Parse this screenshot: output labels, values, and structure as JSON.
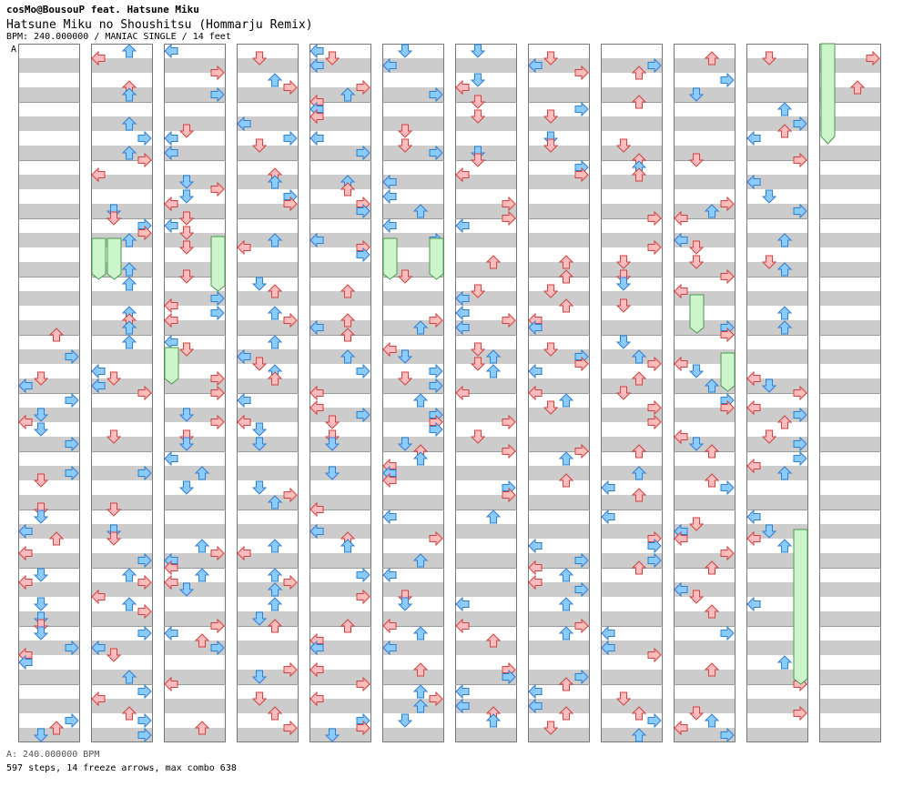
{
  "header": {
    "artist": "cosMo@BousouP feat. Hatsune Miku",
    "title": "Hatsune Miku no Shoushitsu (Hommarju Remix)",
    "meta": "BPM: 240.000000 / MANIAC SINGLE / 14 feet"
  },
  "chart": {
    "section_label": "A",
    "columns": 12,
    "lanes_per_column": 4,
    "colors": {
      "red_fill": "#ffbcbc",
      "red_stroke": "#d24040",
      "blue_fill": "#8ccbff",
      "blue_stroke": "#2f7fcf",
      "freeze_fill": "#ccf5cc",
      "freeze_stroke": "#4b9a4b",
      "stripe_gray": "#cccccc",
      "border": "#777777"
    }
  },
  "footer": {
    "bpm_line": "A: 240.000000 BPM",
    "stats": "597 steps, 14 freeze arrows, max combo 638"
  }
}
